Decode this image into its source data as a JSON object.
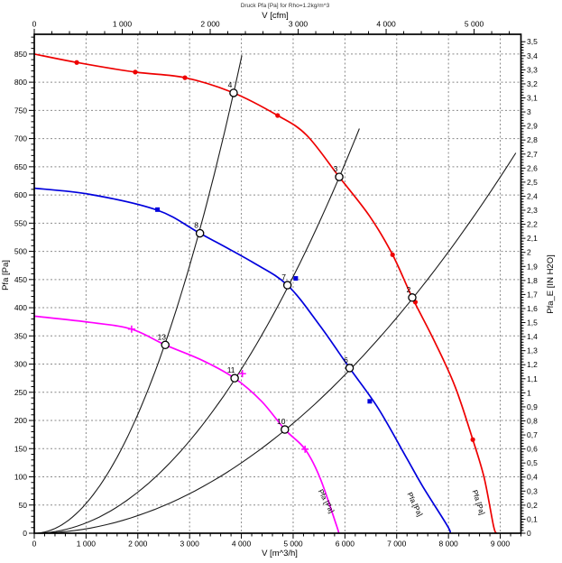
{
  "title": "Druck Pfa [Pa] for Rho=1.2kg/m^3",
  "background": "#ffffff",
  "axes": {
    "top": {
      "label": "V [cfm]",
      "tick_labels": [
        "0",
        "1 000",
        "2 000",
        "3 000",
        "4 000",
        "5 000"
      ],
      "tick_values_cfm": [
        0,
        1000,
        2000,
        3000,
        4000,
        5000
      ],
      "minor_step_cfm": 200
    },
    "bottom": {
      "label": "V [m^3/h]",
      "tick_labels": [
        "0",
        "1 000",
        "2 000",
        "3 000",
        "4 000",
        "5 000",
        "6 000",
        "7 000",
        "8 000",
        "9 000"
      ],
      "tick_values": [
        0,
        1000,
        2000,
        3000,
        4000,
        5000,
        6000,
        7000,
        8000,
        9000
      ],
      "minor_step": 200
    },
    "left": {
      "label": "Pfa [Pa]",
      "tick_labels": [
        "0",
        "50",
        "100",
        "150",
        "200",
        "250",
        "300",
        "350",
        "400",
        "450",
        "500",
        "550",
        "600",
        "650",
        "700",
        "750",
        "800",
        "850"
      ],
      "tick_values": [
        0,
        50,
        100,
        150,
        200,
        250,
        300,
        350,
        400,
        450,
        500,
        550,
        600,
        650,
        700,
        750,
        800,
        850
      ],
      "minor_step": 10
    },
    "right": {
      "label": "Pfa_E [IN H2O]",
      "tick_labels": [
        "0",
        "0,1",
        "0,2",
        "0,3",
        "0,4",
        "0,5",
        "0,6",
        "0,7",
        "0,8",
        "0,9",
        "1",
        "1,1",
        "1,2",
        "1,3",
        "1,4",
        "1,5",
        "1,6",
        "1,7",
        "1,8",
        "1,9",
        "2",
        "2,1",
        "2,2",
        "2,3",
        "2,4",
        "2,5",
        "2,6",
        "2,7",
        "2,8",
        "2,9",
        "3",
        "3,1",
        "3,2",
        "3,3",
        "3,4",
        "3,5"
      ],
      "tick_values": [
        0,
        0.1,
        0.2,
        0.3,
        0.4,
        0.5,
        0.6,
        0.7,
        0.8,
        0.9,
        1,
        1.1,
        1.2,
        1.3,
        1.4,
        1.5,
        1.6,
        1.7,
        1.8,
        1.9,
        2,
        2.1,
        2.2,
        2.3,
        2.4,
        2.5,
        2.6,
        2.7,
        2.8,
        2.9,
        3,
        3.1,
        3.2,
        3.3,
        3.4,
        3.5
      ],
      "minor_step": 0.02
    }
  },
  "chart_data": {
    "type": "line",
    "title": "Druck Pfa [Pa] for Rho=1.2kg/m^3",
    "xlabel_bottom": "V [m^3/h]",
    "xlabel_top": "V [cfm]",
    "ylabel_left": "Pfa [Pa]",
    "ylabel_right": "Pfa_E [IN H2O]",
    "x_range_m3h": [
      0,
      9400
    ],
    "y_range_pa": [
      0,
      885
    ],
    "cfm_to_m3h": 1.699,
    "pa_per_inh2o": 249.089,
    "grid": "dashed, every 1000 m^3/h and every 50 Pa",
    "series": [
      {
        "name": "fan-curve-high-speed",
        "color": "#ee0000",
        "marker": "dot",
        "label": "Pfa [Pa]",
        "label_v": 8460,
        "label_p": 75,
        "label_angle": 72,
        "points": [
          [
            0,
            850
          ],
          [
            820,
            835
          ],
          [
            1950,
            818
          ],
          [
            2910,
            808
          ],
          [
            3850,
            781
          ],
          [
            4700,
            741
          ],
          [
            5260,
            706
          ],
          [
            5890,
            632
          ],
          [
            6480,
            562
          ],
          [
            6920,
            494
          ],
          [
            7300,
            418
          ],
          [
            7700,
            346
          ],
          [
            8120,
            262
          ],
          [
            8470,
            166
          ],
          [
            8690,
            98
          ],
          [
            8870,
            13
          ],
          [
            8930,
            0
          ]
        ],
        "marker_points": [
          [
            820,
            835
          ],
          [
            1950,
            818
          ],
          [
            2910,
            808
          ],
          [
            4700,
            741
          ],
          [
            6920,
            494
          ],
          [
            7360,
            410
          ],
          [
            8470,
            166
          ]
        ]
      },
      {
        "name": "fan-curve-mid-speed",
        "color": "#0000dd",
        "marker": "square",
        "label": "Pfa [Pa]",
        "label_v": 7200,
        "label_p": 70,
        "label_angle": 64,
        "points": [
          [
            0,
            612
          ],
          [
            1080,
            601
          ],
          [
            2380,
            573
          ],
          [
            3200,
            532
          ],
          [
            4210,
            481
          ],
          [
            4890,
            440
          ],
          [
            5510,
            369
          ],
          [
            6090,
            293
          ],
          [
            6640,
            222
          ],
          [
            7170,
            137
          ],
          [
            7510,
            82
          ],
          [
            7980,
            13
          ],
          [
            8030,
            0
          ]
        ],
        "marker_points": [
          [
            2380,
            574
          ],
          [
            5050,
            452
          ],
          [
            6480,
            234
          ]
        ]
      },
      {
        "name": "fan-curve-low-speed",
        "color": "#ff00ff",
        "marker": "plus",
        "label": "Pfa [Pa]",
        "label_v": 5480,
        "label_p": 75,
        "label_angle": 62,
        "points": [
          [
            0,
            385
          ],
          [
            1080,
            374
          ],
          [
            1880,
            362
          ],
          [
            2530,
            334
          ],
          [
            3260,
            306
          ],
          [
            3870,
            275
          ],
          [
            4390,
            234
          ],
          [
            4840,
            184
          ],
          [
            5230,
            149
          ],
          [
            5520,
            98
          ],
          [
            5840,
            13
          ],
          [
            5880,
            0
          ]
        ],
        "marker_points": [
          [
            1880,
            362
          ],
          [
            4020,
            283
          ],
          [
            5230,
            149
          ]
        ]
      }
    ],
    "system_curves": [
      {
        "name": "system-curve-1",
        "equation": "P = k*V^2",
        "k": 5.27e-05,
        "v_end": 4010
      },
      {
        "name": "system-curve-2",
        "equation": "P = k*V^2",
        "k": 1.82e-05,
        "v_end": 6280
      },
      {
        "name": "system-curve-3",
        "equation": "P = k*V^2",
        "k": 7.8e-06,
        "v_end": 9300
      }
    ],
    "operating_points": [
      {
        "label": "4",
        "v": 3850,
        "p": 781
      },
      {
        "label": "3",
        "v": 5890,
        "p": 632
      },
      {
        "label": "2",
        "v": 7300,
        "p": 418
      },
      {
        "label": "8",
        "v": 3200,
        "p": 532
      },
      {
        "label": "7",
        "v": 4890,
        "p": 440
      },
      {
        "label": "6",
        "v": 6090,
        "p": 293
      },
      {
        "label": "13",
        "v": 2530,
        "p": 334
      },
      {
        "label": "11",
        "v": 3870,
        "p": 275
      },
      {
        "label": "10",
        "v": 4840,
        "p": 184
      }
    ]
  }
}
